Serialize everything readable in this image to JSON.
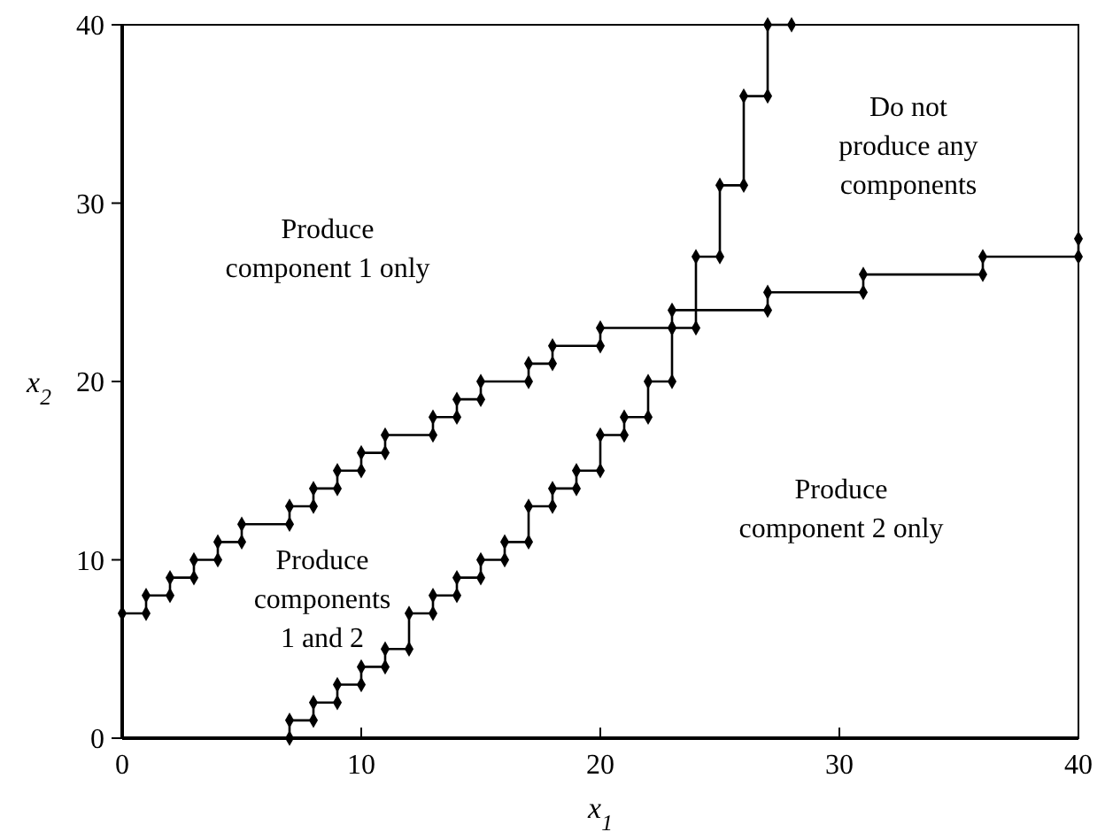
{
  "chart_data": {
    "type": "line",
    "xlabel": "x$_{1}$",
    "ylabel": "x$_{2}$",
    "xlim": [
      0,
      40
    ],
    "ylim": [
      0,
      40
    ],
    "xticks": [
      0,
      10,
      20,
      30,
      40
    ],
    "yticks": [
      0,
      10,
      20,
      30,
      40
    ],
    "marker": "diamond",
    "line_style": "solid",
    "grid": false,
    "series": [
      {
        "color": "#000000",
        "x": [
          0,
          1,
          1,
          2,
          2,
          3,
          3,
          4,
          4,
          5,
          5,
          7,
          7,
          8,
          8,
          9,
          9,
          10,
          10,
          11,
          11,
          13,
          13,
          14,
          14,
          15,
          15,
          17,
          17,
          18,
          18,
          20,
          20,
          23,
          23,
          27,
          27,
          31,
          31,
          36,
          36,
          40,
          40
        ],
        "values": [
          7,
          7,
          8,
          8,
          9,
          9,
          10,
          10,
          11,
          11,
          12,
          12,
          13,
          13,
          14,
          14,
          15,
          15,
          16,
          16,
          17,
          17,
          18,
          18,
          19,
          19,
          20,
          20,
          21,
          21,
          22,
          22,
          23,
          23,
          24,
          24,
          25,
          25,
          26,
          26,
          27,
          27,
          28
        ]
      },
      {
        "color": "#000000",
        "x": [
          7,
          7,
          8,
          8,
          9,
          9,
          10,
          10,
          11,
          11,
          12,
          12,
          13,
          13,
          14,
          14,
          15,
          15,
          16,
          16,
          17,
          17,
          18,
          18,
          19,
          19,
          20,
          20,
          21,
          21,
          22,
          22,
          23,
          23,
          24,
          24,
          25,
          25,
          26,
          26,
          27,
          27,
          28
        ],
        "values": [
          0,
          1,
          1,
          2,
          2,
          3,
          3,
          4,
          4,
          5,
          5,
          7,
          7,
          8,
          8,
          9,
          9,
          10,
          10,
          11,
          11,
          13,
          13,
          14,
          14,
          15,
          15,
          17,
          17,
          18,
          18,
          20,
          20,
          23,
          23,
          27,
          27,
          31,
          31,
          36,
          36,
          40,
          40
        ]
      }
    ],
    "annotations": [
      "Produce\ncomponent 1 only",
      "Do not\nproduce any\ncomponents",
      "Produce\ncomponent 2 only",
      "Produce\ncomponents\n1 and 2"
    ]
  }
}
